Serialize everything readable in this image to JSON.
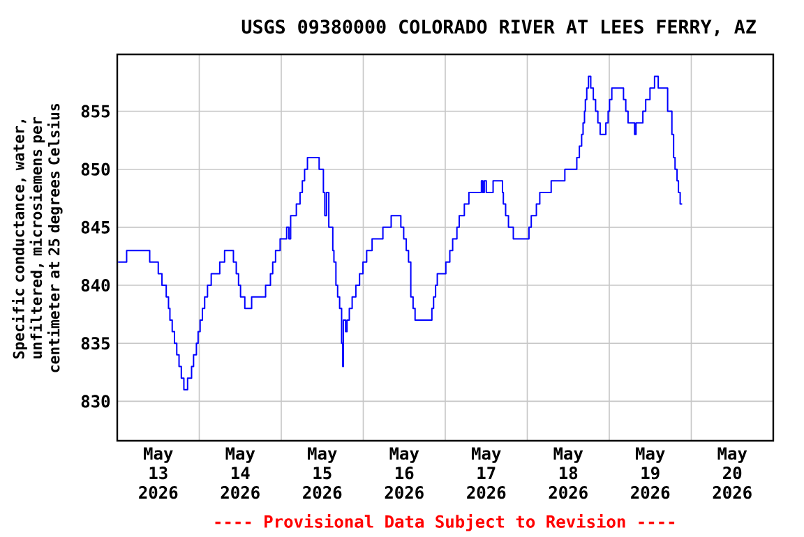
{
  "chart_data": {
    "type": "step",
    "title": "USGS 09380000 COLORADO RIVER AT LEES FERRY, AZ",
    "ylabel": "Specific conductance, water, unfiltered, microsiemens per centimeter at 25 degrees Celsius",
    "annotations": [
      "---- Provisional Data Subject to Revision ----"
    ],
    "x": [
      "2026-05-13T00:15",
      "2026-05-13T02:45",
      "2026-05-13T09:30",
      "2026-05-13T12:00",
      "2026-05-13T13:05",
      "2026-05-13T14:20",
      "2026-05-13T15:00",
      "2026-05-13T15:25",
      "2026-05-13T16:05",
      "2026-05-13T16:45",
      "2026-05-13T17:25",
      "2026-05-13T18:05",
      "2026-05-13T18:45",
      "2026-05-13T19:30",
      "2026-05-13T20:35",
      "2026-05-13T21:45",
      "2026-05-13T22:20",
      "2026-05-13T23:10",
      "2026-05-13T23:40",
      "2026-05-14T00:15",
      "2026-05-14T00:55",
      "2026-05-14T01:35",
      "2026-05-14T02:25",
      "2026-05-14T03:30",
      "2026-05-14T06:00",
      "2026-05-14T07:25",
      "2026-05-14T10:00",
      "2026-05-14T10:50",
      "2026-05-14T11:30",
      "2026-05-14T12:05",
      "2026-05-14T13:20",
      "2026-05-14T15:20",
      "2026-05-14T19:25",
      "2026-05-14T20:50",
      "2026-05-14T21:30",
      "2026-05-14T22:20",
      "2026-05-14T23:40",
      "2026-05-15T01:35",
      "2026-05-15T02:15",
      "2026-05-15T02:45",
      "2026-05-15T04:25",
      "2026-05-15T05:30",
      "2026-05-15T06:10",
      "2026-05-15T06:50",
      "2026-05-15T07:40",
      "2026-05-15T11:05",
      "2026-05-15T12:20",
      "2026-05-15T12:45",
      "2026-05-15T13:15",
      "2026-05-15T13:55",
      "2026-05-15T15:05",
      "2026-05-15T15:25",
      "2026-05-15T16:00",
      "2026-05-15T16:30",
      "2026-05-15T17:05",
      "2026-05-15T17:40",
      "2026-05-15T18:00",
      "2026-05-15T18:10",
      "2026-05-15T18:50",
      "2026-05-15T19:15",
      "2026-05-15T19:55",
      "2026-05-15T20:45",
      "2026-05-15T21:50",
      "2026-05-15T22:55",
      "2026-05-15T23:55",
      "2026-05-16T01:00",
      "2026-05-16T02:35",
      "2026-05-16T05:45",
      "2026-05-16T08:10",
      "2026-05-16T11:00",
      "2026-05-16T11:50",
      "2026-05-16T12:35",
      "2026-05-16T13:15",
      "2026-05-16T13:55",
      "2026-05-16T14:35",
      "2026-05-16T15:10",
      "2026-05-16T20:05",
      "2026-05-16T20:35",
      "2026-05-16T21:10",
      "2026-05-16T21:40",
      "2026-05-17T00:10",
      "2026-05-17T01:20",
      "2026-05-17T02:10",
      "2026-05-17T03:25",
      "2026-05-17T04:05",
      "2026-05-17T05:35",
      "2026-05-17T06:55",
      "2026-05-17T10:35",
      "2026-05-17T11:00",
      "2026-05-17T11:25",
      "2026-05-17T12:00",
      "2026-05-17T14:00",
      "2026-05-17T16:45",
      "2026-05-17T17:00",
      "2026-05-17T17:40",
      "2026-05-17T18:30",
      "2026-05-17T19:55",
      "2026-05-18T00:30",
      "2026-05-18T01:10",
      "2026-05-18T02:40",
      "2026-05-18T03:40",
      "2026-05-18T07:00",
      "2026-05-18T11:00",
      "2026-05-18T14:30",
      "2026-05-18T15:15",
      "2026-05-18T15:55",
      "2026-05-18T16:20",
      "2026-05-18T16:45",
      "2026-05-18T17:00",
      "2026-05-18T17:25",
      "2026-05-18T17:55",
      "2026-05-18T18:35",
      "2026-05-18T19:20",
      "2026-05-18T20:00",
      "2026-05-18T20:40",
      "2026-05-18T21:20",
      "2026-05-18T23:00",
      "2026-05-18T23:40",
      "2026-05-19T00:05",
      "2026-05-19T00:45",
      "2026-05-19T04:10",
      "2026-05-19T04:50",
      "2026-05-19T05:30",
      "2026-05-19T07:25",
      "2026-05-19T07:50",
      "2026-05-19T09:50",
      "2026-05-19T10:40",
      "2026-05-19T11:55",
      "2026-05-19T13:15",
      "2026-05-19T14:20",
      "2026-05-19T17:05",
      "2026-05-19T18:20",
      "2026-05-19T18:50",
      "2026-05-19T19:15",
      "2026-05-19T19:50",
      "2026-05-19T20:15",
      "2026-05-19T20:45",
      "2026-05-19T21:20"
    ],
    "values": [
      842,
      843,
      842,
      841,
      840,
      839,
      838,
      837,
      836,
      835,
      834,
      833,
      832,
      831,
      832,
      833,
      834,
      835,
      836,
      837,
      838,
      839,
      840,
      841,
      842,
      843,
      842,
      841,
      840,
      839,
      838,
      839,
      840,
      841,
      842,
      843,
      844,
      845,
      844,
      846,
      847,
      848,
      849,
      850,
      851,
      850,
      848,
      846,
      848,
      845,
      843,
      842,
      840,
      839,
      838,
      835,
      833,
      837,
      836,
      837,
      838,
      839,
      840,
      841,
      842,
      843,
      844,
      845,
      846,
      845,
      844,
      843,
      842,
      839,
      838,
      837,
      838,
      839,
      840,
      841,
      842,
      843,
      844,
      845,
      846,
      847,
      848,
      849,
      848,
      849,
      848,
      849,
      848,
      847,
      846,
      845,
      844,
      845,
      846,
      847,
      848,
      849,
      850,
      851,
      852,
      853,
      854,
      855,
      856,
      857,
      858,
      857,
      856,
      855,
      854,
      853,
      854,
      855,
      856,
      857,
      856,
      855,
      854,
      853,
      854,
      855,
      856,
      857,
      858,
      857,
      855,
      853,
      851,
      850,
      849,
      848,
      847,
      847
    ],
    "color": "#0000ff",
    "xlim": [
      "2026-05-13",
      "2026-05-21"
    ],
    "xticks": [
      {
        "value": "2026-05-13T12:00",
        "label": "May 13 2026"
      },
      {
        "value": "2026-05-14T12:00",
        "label": "May 14 2026"
      },
      {
        "value": "2026-05-15T12:00",
        "label": "May 15 2026"
      },
      {
        "value": "2026-05-16T12:00",
        "label": "May 16 2026"
      },
      {
        "value": "2026-05-17T12:00",
        "label": "May 17 2026"
      },
      {
        "value": "2026-05-18T12:00",
        "label": "May 18 2026"
      },
      {
        "value": "2026-05-19T12:00",
        "label": "May 19 2026"
      },
      {
        "value": "2026-05-20T12:00",
        "label": "May 20 2026"
      },
      {
        "value": "2026-05-14",
        "label": null
      },
      {
        "value": "2026-05-15",
        "label": null
      },
      {
        "value": "2026-05-16",
        "label": null
      },
      {
        "value": "2026-05-17",
        "label": null
      },
      {
        "value": "2026-05-18",
        "label": null
      },
      {
        "value": "2026-05-19",
        "label": null
      },
      {
        "value": "2026-05-20",
        "label": null
      }
    ],
    "ylim": [
      826.6,
      859.9
    ],
    "yticks": [
      830,
      835,
      840,
      845,
      850,
      855
    ],
    "grid": true
  }
}
